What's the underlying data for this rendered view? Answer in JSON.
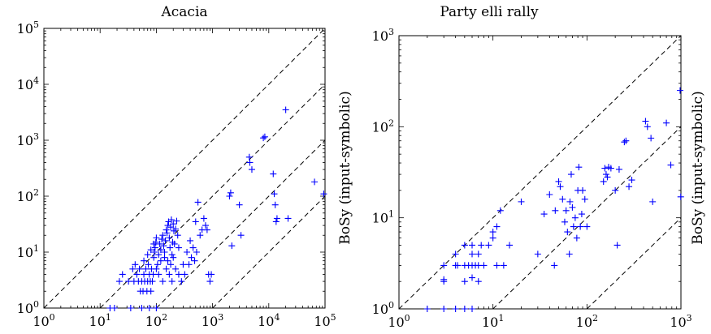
{
  "chart_data": [
    {
      "type": "scatter",
      "title": "Acacia",
      "xlabel": "",
      "ylabel": "BoSy (input-symbolic)",
      "xscale": "log",
      "yscale": "log",
      "xlim": [
        1,
        100000
      ],
      "ylim": [
        1,
        100000
      ],
      "x_ticks": [
        {
          "base": "10",
          "exp": "0"
        },
        {
          "base": "10",
          "exp": "1"
        },
        {
          "base": "10",
          "exp": "2"
        },
        {
          "base": "10",
          "exp": "3"
        },
        {
          "base": "10",
          "exp": "4"
        },
        {
          "base": "10",
          "exp": "5"
        }
      ],
      "y_ticks": [
        {
          "base": "10",
          "exp": "0"
        },
        {
          "base": "10",
          "exp": "1"
        },
        {
          "base": "10",
          "exp": "2"
        },
        {
          "base": "10",
          "exp": "3"
        },
        {
          "base": "10",
          "exp": "4"
        },
        {
          "base": "10",
          "exp": "5"
        }
      ],
      "reference_lines": [
        {
          "type": "y = x * factor",
          "factor": 1
        },
        {
          "type": "y = x * factor",
          "factor": 0.1
        },
        {
          "type": "y = x * factor",
          "factor": 0.01
        },
        {
          "type": "y = x * factor",
          "factor": 0.001
        }
      ],
      "marker": "+",
      "color": "#0000ff",
      "grid": false,
      "points": [
        [
          15,
          1
        ],
        [
          18,
          1
        ],
        [
          35,
          1
        ],
        [
          55,
          1
        ],
        [
          75,
          1
        ],
        [
          100,
          1
        ],
        [
          22,
          3
        ],
        [
          25,
          4
        ],
        [
          32,
          3
        ],
        [
          38,
          5
        ],
        [
          40,
          3
        ],
        [
          42,
          6
        ],
        [
          45,
          4
        ],
        [
          48,
          3
        ],
        [
          50,
          5
        ],
        [
          52,
          2
        ],
        [
          55,
          3
        ],
        [
          58,
          2
        ],
        [
          60,
          4
        ],
        [
          62,
          3
        ],
        [
          65,
          5
        ],
        [
          68,
          2
        ],
        [
          70,
          3
        ],
        [
          72,
          6
        ],
        [
          75,
          4
        ],
        [
          78,
          3
        ],
        [
          80,
          2
        ],
        [
          82,
          5
        ],
        [
          85,
          3
        ],
        [
          88,
          4
        ],
        [
          90,
          8
        ],
        [
          92,
          10
        ],
        [
          95,
          12
        ],
        [
          98,
          15
        ],
        [
          100,
          18
        ],
        [
          105,
          6
        ],
        [
          110,
          9
        ],
        [
          115,
          14
        ],
        [
          120,
          11
        ],
        [
          125,
          17
        ],
        [
          130,
          20
        ],
        [
          135,
          13
        ],
        [
          140,
          8
        ],
        [
          145,
          16
        ],
        [
          150,
          25
        ],
        [
          155,
          22
        ],
        [
          160,
          30
        ],
        [
          165,
          35
        ],
        [
          170,
          18
        ],
        [
          175,
          12
        ],
        [
          180,
          28
        ],
        [
          185,
          38
        ],
        [
          190,
          9
        ],
        [
          195,
          15
        ],
        [
          200,
          32
        ],
        [
          205,
          24
        ],
        [
          210,
          14
        ],
        [
          220,
          26
        ],
        [
          230,
          36
        ],
        [
          240,
          20
        ],
        [
          250,
          12
        ],
        [
          60,
          7
        ],
        [
          70,
          9
        ],
        [
          80,
          11
        ],
        [
          90,
          14
        ],
        [
          100,
          5
        ],
        [
          110,
          4
        ],
        [
          120,
          7
        ],
        [
          130,
          3
        ],
        [
          140,
          10
        ],
        [
          150,
          5
        ],
        [
          160,
          7
        ],
        [
          170,
          4
        ],
        [
          180,
          6
        ],
        [
          190,
          3
        ],
        [
          200,
          8
        ],
        [
          220,
          5
        ],
        [
          250,
          4
        ],
        [
          280,
          3
        ],
        [
          300,
          6
        ],
        [
          320,
          4
        ],
        [
          350,
          10
        ],
        [
          380,
          6
        ],
        [
          400,
          16
        ],
        [
          420,
          8
        ],
        [
          450,
          12
        ],
        [
          480,
          7
        ],
        [
          500,
          35
        ],
        [
          520,
          10
        ],
        [
          550,
          78
        ],
        [
          600,
          20
        ],
        [
          650,
          25
        ],
        [
          700,
          40
        ],
        [
          750,
          30
        ],
        [
          800,
          25
        ],
        [
          850,
          4
        ],
        [
          900,
          3
        ],
        [
          950,
          4
        ],
        [
          2000,
          100
        ],
        [
          2100,
          115
        ],
        [
          2200,
          13
        ],
        [
          3000,
          70
        ],
        [
          3200,
          20
        ],
        [
          4500,
          500
        ],
        [
          4600,
          400
        ],
        [
          5000,
          300
        ],
        [
          8000,
          1100
        ],
        [
          8500,
          1150
        ],
        [
          12000,
          250
        ],
        [
          12500,
          110
        ],
        [
          13000,
          70
        ],
        [
          13500,
          35
        ],
        [
          14000,
          40
        ],
        [
          20000,
          3500
        ],
        [
          22000,
          40
        ],
        [
          65000,
          180
        ],
        [
          95000,
          110
        ]
      ]
    },
    {
      "type": "scatter",
      "title": "Party elli rally",
      "xlabel": "",
      "ylabel": "BoSy (input-symbolic)",
      "xscale": "log",
      "yscale": "log",
      "xlim": [
        1,
        1000
      ],
      "ylim": [
        1,
        1000
      ],
      "x_ticks": [
        {
          "base": "10",
          "exp": "0"
        },
        {
          "base": "10",
          "exp": "1"
        },
        {
          "base": "10",
          "exp": "2"
        },
        {
          "base": "10",
          "exp": "3"
        }
      ],
      "y_ticks": [
        {
          "base": "10",
          "exp": "0"
        },
        {
          "base": "10",
          "exp": "1"
        },
        {
          "base": "10",
          "exp": "2"
        },
        {
          "base": "10",
          "exp": "3"
        }
      ],
      "reference_lines": [
        {
          "type": "y = x * factor",
          "factor": 1
        },
        {
          "type": "y = x * factor",
          "factor": 0.1
        },
        {
          "type": "y = x * factor",
          "factor": 0.01
        }
      ],
      "marker": "+",
      "color": "#0000ff",
      "grid": false,
      "points": [
        [
          2,
          1
        ],
        [
          3,
          1
        ],
        [
          4,
          1
        ],
        [
          5,
          1
        ],
        [
          6,
          1
        ],
        [
          3,
          2
        ],
        [
          3,
          2.1
        ],
        [
          5,
          2
        ],
        [
          6,
          2.2
        ],
        [
          7,
          2
        ],
        [
          3,
          3
        ],
        [
          4,
          3
        ],
        [
          4.2,
          3
        ],
        [
          5,
          3
        ],
        [
          5.5,
          3
        ],
        [
          6,
          3
        ],
        [
          6.5,
          3
        ],
        [
          7,
          3
        ],
        [
          8,
          3
        ],
        [
          11,
          3
        ],
        [
          13,
          3
        ],
        [
          4,
          4
        ],
        [
          5,
          5
        ],
        [
          6,
          4
        ],
        [
          6,
          5
        ],
        [
          7,
          4
        ],
        [
          7.5,
          5
        ],
        [
          9,
          5
        ],
        [
          10,
          6
        ],
        [
          10,
          7
        ],
        [
          11,
          8
        ],
        [
          12,
          12
        ],
        [
          15,
          5
        ],
        [
          20,
          15
        ],
        [
          30,
          4
        ],
        [
          35,
          11
        ],
        [
          40,
          18
        ],
        [
          45,
          3
        ],
        [
          46,
          12
        ],
        [
          50,
          25
        ],
        [
          52,
          22
        ],
        [
          55,
          16
        ],
        [
          58,
          9
        ],
        [
          60,
          12
        ],
        [
          62,
          7
        ],
        [
          65,
          4
        ],
        [
          66,
          15
        ],
        [
          68,
          30
        ],
        [
          70,
          13
        ],
        [
          72,
          8
        ],
        [
          75,
          10
        ],
        [
          78,
          6
        ],
        [
          80,
          20
        ],
        [
          82,
          36
        ],
        [
          85,
          8
        ],
        [
          88,
          11
        ],
        [
          90,
          20
        ],
        [
          95,
          16
        ],
        [
          100,
          8
        ],
        [
          150,
          25
        ],
        [
          155,
          35
        ],
        [
          160,
          30
        ],
        [
          165,
          28
        ],
        [
          170,
          36
        ],
        [
          180,
          35
        ],
        [
          200,
          20
        ],
        [
          210,
          5
        ],
        [
          220,
          34
        ],
        [
          250,
          68
        ],
        [
          260,
          70
        ],
        [
          280,
          22
        ],
        [
          300,
          26
        ],
        [
          420,
          115
        ],
        [
          440,
          100
        ],
        [
          480,
          75
        ],
        [
          500,
          15
        ],
        [
          700,
          110
        ],
        [
          780,
          38
        ],
        [
          980,
          250
        ],
        [
          995,
          17
        ]
      ]
    }
  ]
}
